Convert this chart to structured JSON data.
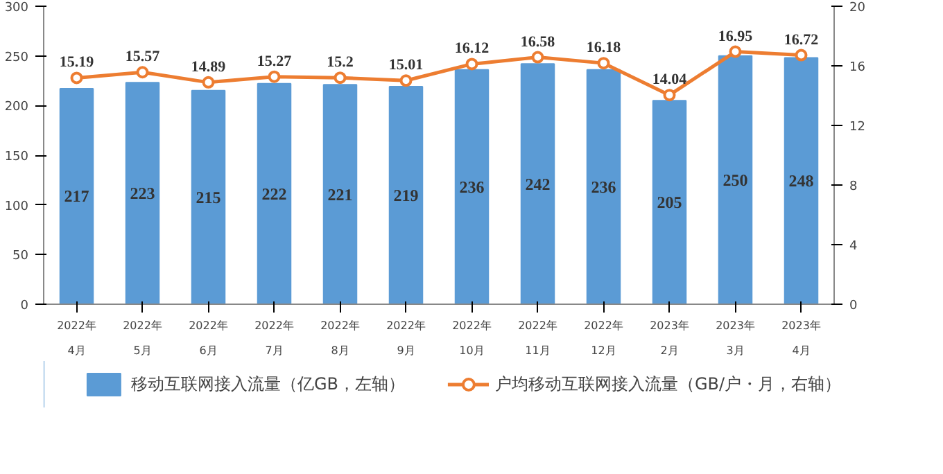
{
  "chart_data": {
    "type": "bar",
    "categories": [
      "2022年\n4月",
      "2022年\n5月",
      "2022年\n6月",
      "2022年\n7月",
      "2022年\n8月",
      "2022年\n9月",
      "2022年\n10月",
      "2022年\n11月",
      "2022年\n12月",
      "2023年\n2月",
      "2023年\n3月",
      "2023年\n4月"
    ],
    "series": [
      {
        "name": "移动互联网接入流量（亿GB，左轴）",
        "color": "#5b9bd5",
        "values": [
          217,
          223,
          215,
          222,
          221,
          219,
          236,
          242,
          236,
          205,
          250,
          248
        ]
      },
      {
        "name": "户均移动互联网接入流量（GB/户・月，右轴）",
        "type": "line",
        "axis": "y2",
        "color": "#ed7d31",
        "marker": "circle",
        "values": [
          15.19,
          15.57,
          14.89,
          15.27,
          15.2,
          15.01,
          16.12,
          16.58,
          16.18,
          14.04,
          16.95,
          16.72
        ]
      }
    ],
    "ylim": [
      0,
      300
    ],
    "yticks": [
      0,
      50,
      100,
      150,
      200,
      250,
      300
    ],
    "y2lim": [
      0,
      20
    ],
    "y2ticks": [
      0,
      4,
      8,
      12,
      16,
      20
    ],
    "data_labels": true,
    "legend": "bottom",
    "grid": false
  }
}
